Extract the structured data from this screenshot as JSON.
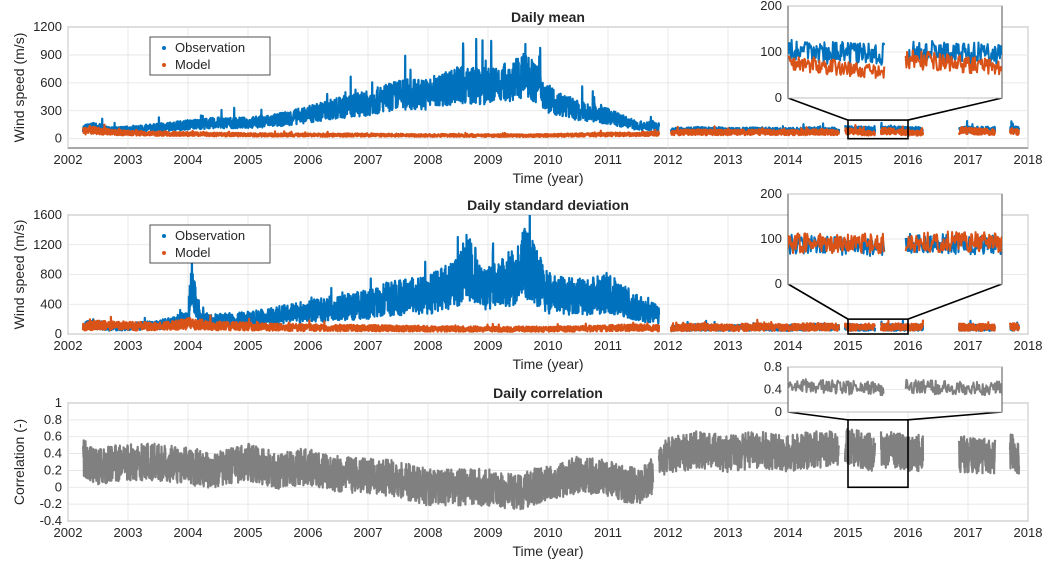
{
  "chart_data": [
    {
      "id": "mean",
      "type": "line",
      "title": "Daily mean",
      "xlabel": "Time (year)",
      "ylabel": "Wind speed (m/s)",
      "xlim": [
        2002,
        2018
      ],
      "ylim": [
        -100,
        1200
      ],
      "xticks": [
        "2002",
        "2003",
        "2004",
        "2005",
        "2006",
        "2007",
        "2008",
        "2009",
        "2010",
        "2011",
        "2012",
        "2013",
        "2014",
        "2015",
        "2016",
        "2017",
        "2018"
      ],
      "yticks": [
        "0",
        "300",
        "600",
        "900",
        "1200"
      ],
      "grid": true,
      "legend": {
        "placement": "top-left",
        "entries": [
          "Observation",
          "Model"
        ]
      },
      "series": [
        {
          "name": "Observation",
          "color": "#0072BD",
          "segments": [
            {
              "x": [
                2002.25,
                2002.45,
                2002.7,
                2003.0,
                2003.5,
                2004.0,
                2004.5,
                2005.0,
                2005.5,
                2006.0,
                2006.5,
                2007.0,
                2007.5,
                2008.0,
                2008.5,
                2009.0,
                2009.5,
                2009.65,
                2010.0,
                2010.5,
                2011.0,
                2011.5,
                2011.85
              ],
              "y": [
                110,
                130,
                90,
                100,
                120,
                150,
                170,
                170,
                200,
                260,
                330,
                380,
                470,
                480,
                580,
                560,
                640,
                700,
                430,
                300,
                240,
                140,
                130
              ]
            },
            {
              "x": [
                2012.05,
                2012.5,
                2013.0,
                2013.5,
                2014.0,
                2014.5,
                2014.85
              ],
              "y": [
                85,
                95,
                88,
                92,
                85,
                95,
                88
              ]
            },
            {
              "x": [
                2014.95,
                2015.45
              ],
              "y": [
                102,
                95
              ]
            },
            {
              "x": [
                2015.55,
                2016.25
              ],
              "y": [
                100,
                95
              ]
            },
            {
              "x": [
                2016.85,
                2017.45
              ],
              "y": [
                98,
                95
              ]
            },
            {
              "x": [
                2017.7,
                2017.85
              ],
              "y": [
                100,
                95
              ]
            }
          ]
        },
        {
          "name": "Model",
          "color": "#D95319",
          "segments": [
            {
              "x": [
                2002.25,
                2002.45,
                2002.7,
                2003.0,
                2003.5,
                2004.0,
                2004.5,
                2005.0,
                2005.5,
                2006.0,
                2006.5,
                2007.0,
                2007.5,
                2008.0,
                2008.5,
                2009.0,
                2009.5,
                2010.0,
                2010.5,
                2011.0,
                2011.5,
                2011.85
              ],
              "y": [
                80,
                90,
                70,
                60,
                55,
                50,
                45,
                42,
                40,
                40,
                38,
                40,
                38,
                35,
                35,
                35,
                33,
                35,
                40,
                45,
                50,
                55
              ]
            },
            {
              "x": [
                2012.05,
                2012.5,
                2013.0,
                2013.5,
                2014.0,
                2014.5,
                2014.85
              ],
              "y": [
                65,
                70,
                65,
                70,
                65,
                72,
                68
              ]
            },
            {
              "x": [
                2014.95,
                2015.45
              ],
              "y": [
                80,
                55
              ]
            },
            {
              "x": [
                2015.55,
                2016.25
              ],
              "y": [
                85,
                55
              ]
            },
            {
              "x": [
                2016.85,
                2017.45
              ],
              "y": [
                90,
                70
              ]
            },
            {
              "x": [
                2017.7,
                2017.85
              ],
              "y": [
                80,
                70
              ]
            }
          ]
        }
      ],
      "inset": {
        "xlim": [
          2015,
          2016
        ],
        "ylim": [
          0,
          200
        ],
        "yticks": [
          "0",
          "100",
          "200"
        ]
      }
    },
    {
      "id": "std",
      "type": "line",
      "title": "Daily standard deviation",
      "xlabel": "Time (year)",
      "ylabel": "Wind speed (m/s)",
      "xlim": [
        2002,
        2018
      ],
      "ylim": [
        0,
        1600
      ],
      "xticks": [
        "2002",
        "2003",
        "2004",
        "2005",
        "2006",
        "2007",
        "2008",
        "2009",
        "2010",
        "2011",
        "2012",
        "2013",
        "2014",
        "2015",
        "2016",
        "2017",
        "2018"
      ],
      "yticks": [
        "0",
        "400",
        "800",
        "1200",
        "1600"
      ],
      "grid": true,
      "legend": {
        "placement": "top-left",
        "entries": [
          "Observation",
          "Model"
        ]
      },
      "series": [
        {
          "name": "Observation",
          "color": "#0072BD",
          "segments": [
            {
              "x": [
                2002.25,
                2002.45,
                2002.7,
                2003.0,
                2003.5,
                2004.0,
                2004.05,
                2004.2,
                2004.5,
                2005.0,
                2005.5,
                2006.0,
                2006.5,
                2007.0,
                2007.5,
                2008.0,
                2008.5,
                2008.65,
                2009.0,
                2009.5,
                2009.6,
                2010.0,
                2010.5,
                2011.0,
                2011.5,
                2011.85
              ],
              "y": [
                100,
                140,
                80,
                100,
                120,
                200,
                650,
                200,
                180,
                200,
                250,
                300,
                350,
                400,
                500,
                520,
                700,
                900,
                600,
                800,
                1000,
                550,
                500,
                550,
                350,
                250
              ]
            },
            {
              "x": [
                2012.05,
                2012.5,
                2013.0,
                2013.5,
                2014.0,
                2014.5,
                2014.85
              ],
              "y": [
                75,
                90,
                80,
                88,
                80,
                95,
                85
              ]
            },
            {
              "x": [
                2014.95,
                2015.45
              ],
              "y": [
                90,
                80
              ]
            },
            {
              "x": [
                2015.55,
                2016.25
              ],
              "y": [
                90,
                85
              ]
            },
            {
              "x": [
                2016.85,
                2017.45
              ],
              "y": [
                90,
                80
              ]
            },
            {
              "x": [
                2017.7,
                2017.85
              ],
              "y": [
                90,
                85
              ]
            }
          ]
        },
        {
          "name": "Model",
          "color": "#D95319",
          "segments": [
            {
              "x": [
                2002.25,
                2002.45,
                2002.7,
                2003.0,
                2003.5,
                2004.0,
                2004.5,
                2005.0,
                2005.5,
                2006.0,
                2006.5,
                2007.0,
                2007.5,
                2008.0,
                2008.5,
                2009.0,
                2009.5,
                2010.0,
                2010.5,
                2011.0,
                2011.5,
                2011.85
              ],
              "y": [
                90,
                120,
                110,
                110,
                100,
                140,
                110,
                100,
                90,
                85,
                80,
                80,
                75,
                70,
                70,
                65,
                65,
                65,
                70,
                80,
                85,
                80
              ]
            },
            {
              "x": [
                2012.05,
                2012.5,
                2013.0,
                2013.5,
                2014.0,
                2014.5,
                2014.85
              ],
              "y": [
                80,
                95,
                85,
                95,
                85,
                100,
                90
              ]
            },
            {
              "x": [
                2014.95,
                2015.45
              ],
              "y": [
                90,
                90
              ]
            },
            {
              "x": [
                2015.55,
                2016.25
              ],
              "y": [
                95,
                90
              ]
            },
            {
              "x": [
                2016.85,
                2017.45
              ],
              "y": [
                95,
                85
              ]
            },
            {
              "x": [
                2017.7,
                2017.85
              ],
              "y": [
                95,
                90
              ]
            }
          ]
        }
      ],
      "inset": {
        "xlim": [
          2015,
          2016
        ],
        "ylim": [
          0,
          200
        ],
        "yticks": [
          "0",
          "100",
          "200"
        ]
      }
    },
    {
      "id": "corr",
      "type": "line",
      "title": "Daily correlation",
      "xlabel": "Time (year)",
      "ylabel": "Correlation (-)",
      "xlim": [
        2002,
        2018
      ],
      "ylim": [
        -0.4,
        1
      ],
      "xticks": [
        "2002",
        "2003",
        "2004",
        "2005",
        "2006",
        "2007",
        "2008",
        "2009",
        "2010",
        "2011",
        "2012",
        "2013",
        "2014",
        "2015",
        "2016",
        "2017",
        "2018"
      ],
      "yticks": [
        "-0.4",
        "-0.2",
        "0",
        "0.2",
        "0.4",
        "0.6",
        "0.8",
        "1"
      ],
      "grid": true,
      "series": [
        {
          "name": "",
          "color": "#808080",
          "segments": [
            {
              "x": [
                2002.25,
                2002.5,
                2003.0,
                2003.5,
                2004.0,
                2004.5,
                2005.0,
                2005.5,
                2006.0,
                2006.5,
                2007.0,
                2007.5,
                2008.0,
                2008.5,
                2009.0,
                2009.5,
                2010.0,
                2010.5,
                2011.0,
                2011.5,
                2011.75
              ],
              "y": [
                0.35,
                0.25,
                0.3,
                0.3,
                0.25,
                0.2,
                0.3,
                0.2,
                0.25,
                0.15,
                0.15,
                0.1,
                0.0,
                0.0,
                0.0,
                -0.05,
                0.05,
                0.15,
                0.1,
                0.0,
                0.15
              ]
            },
            {
              "x": [
                2011.85,
                2012.5,
                2013.0,
                2013.5,
                2014.0,
                2014.5,
                2014.85
              ],
              "y": [
                0.35,
                0.45,
                0.4,
                0.45,
                0.4,
                0.45,
                0.45
              ]
            },
            {
              "x": [
                2014.95,
                2015.45
              ],
              "y": [
                0.5,
                0.4
              ]
            },
            {
              "x": [
                2015.55,
                2016.25
              ],
              "y": [
                0.45,
                0.4
              ]
            },
            {
              "x": [
                2016.85,
                2017.45
              ],
              "y": [
                0.4,
                0.35
              ]
            },
            {
              "x": [
                2017.7,
                2017.85
              ],
              "y": [
                0.45,
                0.3
              ]
            }
          ]
        }
      ],
      "inset": {
        "xlim": [
          2015,
          2016
        ],
        "ylim": [
          0,
          0.8
        ],
        "yticks": [
          "0",
          "0.4",
          "0.8"
        ]
      }
    }
  ]
}
